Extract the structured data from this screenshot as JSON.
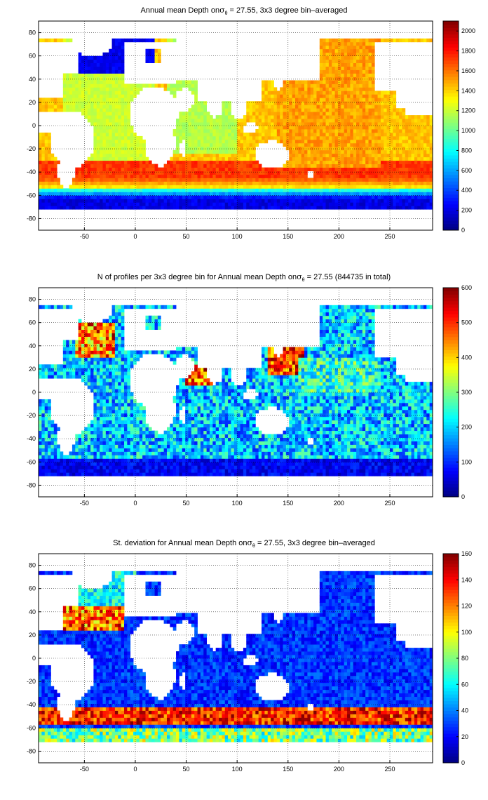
{
  "chart_data": [
    {
      "type": "heatmap",
      "title_pre": "Annual mean Depth on",
      "title_sigma": "σ",
      "title_sub": "θ",
      "title_post": " = 27.55, 3x3 degree bin–averaged",
      "x_ticks": [
        -50,
        0,
        50,
        100,
        150,
        200,
        250
      ],
      "y_ticks": [
        80,
        60,
        40,
        20,
        0,
        -20,
        -40,
        -60,
        -80
      ],
      "xlim": [
        -95,
        292
      ],
      "ylim": [
        -90,
        90
      ],
      "grid": true,
      "colorbar": {
        "min": 0,
        "max": 2100,
        "ticks": [
          0,
          200,
          400,
          600,
          800,
          1000,
          1200,
          1400,
          1600,
          1800,
          2000
        ]
      },
      "field": "mean_depth"
    },
    {
      "type": "heatmap",
      "title_pre": "N of profiles per 3x3 degree bin for Annual mean Depth on",
      "title_sigma": "σ",
      "title_sub": "θ",
      "title_post": " = 27.55 (844735 in total)",
      "x_ticks": [
        -50,
        0,
        50,
        100,
        150,
        200,
        250
      ],
      "y_ticks": [
        80,
        60,
        40,
        20,
        0,
        -20,
        -40,
        -60,
        -80
      ],
      "xlim": [
        -95,
        292
      ],
      "ylim": [
        -90,
        90
      ],
      "grid": true,
      "colorbar": {
        "min": 0,
        "max": 600,
        "ticks": [
          0,
          100,
          200,
          300,
          400,
          500,
          600
        ]
      },
      "field": "profile_count"
    },
    {
      "type": "heatmap",
      "title_pre": "St. deviation for Annual mean Depth on",
      "title_sigma": "σ",
      "title_sub": "θ",
      "title_post": " = 27.55, 3x3 degree bin–averaged",
      "x_ticks": [
        -50,
        0,
        50,
        100,
        150,
        200,
        250
      ],
      "y_ticks": [
        80,
        60,
        40,
        20,
        0,
        -20,
        -40,
        -60,
        -80
      ],
      "xlim": [
        -95,
        292
      ],
      "ylim": [
        -90,
        90
      ],
      "grid": true,
      "colorbar": {
        "min": 0,
        "max": 160,
        "ticks": [
          0,
          20,
          40,
          60,
          80,
          100,
          120,
          140,
          160
        ]
      },
      "field": "std_depth"
    }
  ]
}
